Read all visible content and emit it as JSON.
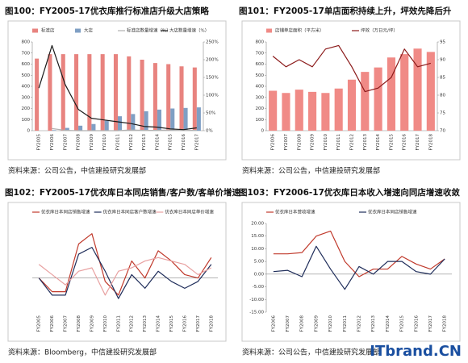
{
  "chart_data": [
    {
      "type": "combo",
      "title": "图100：FY2005-17优衣库推行标准店升级大店策略",
      "source": "资料来源：公司公告，中信建投研究发展部",
      "categories": [
        "FY2005",
        "FY2006",
        "FY2007",
        "FY2008",
        "FY2009",
        "FY2010",
        "FY2011",
        "FY2012",
        "FY2013",
        "FY2014",
        "FY2015",
        "FY2016",
        "FY2017"
      ],
      "ylim": [
        0,
        800
      ],
      "yticks": [
        0,
        100,
        200,
        300,
        400,
        500,
        600,
        700,
        800
      ],
      "y2lim": [
        0,
        250
      ],
      "y2ticks": [
        {
          "value": 0,
          "label": "0%"
        },
        {
          "value": 50,
          "label": "50%"
        },
        {
          "value": 100,
          "label": "100%"
        },
        {
          "value": 150,
          "label": "150%"
        },
        {
          "value": 200,
          "label": "200%"
        },
        {
          "value": 250,
          "label": "250%"
        }
      ],
      "series": [
        {
          "name": "标准店",
          "type": "bar",
          "color": "#e8837f",
          "values": [
            650,
            690,
            690,
            690,
            690,
            690,
            690,
            670,
            640,
            610,
            600,
            580,
            570
          ]
        },
        {
          "name": "大店",
          "type": "bar",
          "color": "#7f9fc4",
          "values": [
            0,
            5,
            25,
            45,
            60,
            90,
            130,
            150,
            175,
            190,
            200,
            205,
            210
          ]
        },
        {
          "name": "标准店数量增速（%）",
          "type": "line",
          "axis": "y2",
          "color": "#b0b0b0",
          "values": [
            null,
            6,
            1,
            0,
            0,
            0,
            0,
            2,
            1,
            1,
            2,
            1,
            1
          ]
        },
        {
          "name": "大店数量增速（%）",
          "type": "line",
          "axis": "y2",
          "color": "#1a1a1a",
          "values": [
            120,
            240,
            130,
            60,
            35,
            30,
            25,
            20,
            12,
            10,
            5,
            3,
            8
          ]
        }
      ]
    },
    {
      "type": "combo",
      "title": "图101：FY2005-17单店面积持续上升，坪效先降后升",
      "source": "资料来源：公司公告，中信建投研究发展部",
      "categories": [
        "FY2006",
        "FY2007",
        "FY2008",
        "FY2009",
        "FY2010",
        "FY2011",
        "FY2012",
        "FY2013",
        "FY2014",
        "FY2015",
        "FY2016",
        "FY2017",
        "FY2018"
      ],
      "ylim": [
        0,
        800
      ],
      "yticks": [
        0,
        100,
        200,
        300,
        400,
        500,
        600,
        700,
        800
      ],
      "y2lim": [
        70,
        95
      ],
      "y2ticks": [
        70,
        75,
        80,
        85,
        90,
        95
      ],
      "series": [
        {
          "name": "店铺单店面积（平方米）",
          "type": "bar",
          "color": "#f08a86",
          "values": [
            360,
            340,
            370,
            350,
            340,
            380,
            460,
            530,
            570,
            660,
            690,
            740,
            710
          ]
        },
        {
          "name": "坪效（万日元/坪）",
          "type": "line",
          "axis": "y2",
          "color": "#8b1a1a",
          "values": [
            91,
            88,
            90,
            88,
            93,
            94,
            88,
            81,
            82,
            85,
            93,
            88,
            89
          ]
        }
      ]
    },
    {
      "type": "line",
      "title": "图102：FY2005-17优衣库日本同店销售/客户数/客单价增速",
      "source": "资料来源：Bloomberg，中信建投研究发展部",
      "categories": [
        "FY2005",
        "FY2006",
        "FY2007",
        "FY2008",
        "FY2009",
        "FY2010",
        "FY2011",
        "FY2012",
        "FY2013",
        "FY2014",
        "FY2015",
        "FY2016",
        "FY2017",
        "FY2018"
      ],
      "ylim": [
        -10,
        16
      ],
      "series": [
        {
          "name": "优衣库日本同店销售增速",
          "type": "line",
          "color": "#c0392b",
          "values": [
            0,
            -4,
            -4,
            10,
            13,
            -1,
            -5,
            5,
            0,
            8,
            5,
            1,
            0,
            6
          ]
        },
        {
          "name": "优衣库日本同店客户数增速",
          "type": "line",
          "color": "#1f2d5a",
          "values": [
            0,
            -5,
            -5,
            7,
            9,
            2,
            -6,
            1,
            -3,
            2,
            -1,
            -3,
            -1,
            4
          ]
        },
        {
          "name": "优衣库日本同店单价增速",
          "type": "line",
          "color": "#e8a0a0",
          "values": [
            4,
            1,
            -2,
            2,
            3,
            -5,
            2,
            3,
            5,
            6,
            5,
            4,
            1,
            3
          ]
        }
      ]
    },
    {
      "type": "line",
      "title": "图103：FY2006-17优衣库日本收入增速向同店增速收敛",
      "source": "资料来源：公司公告，中信建投研究发展部",
      "categories": [
        "FY2006",
        "FY2007",
        "FY2008",
        "FY2009",
        "FY2010",
        "FY2011",
        "FY2012",
        "FY2013",
        "FY2014",
        "FY2015",
        "FY2016",
        "FY2017",
        "FY2018"
      ],
      "ylim": [
        -15,
        20
      ],
      "yticks": [
        {
          "value": -15,
          "label": "-15.00"
        },
        {
          "value": -10,
          "label": "-10.00"
        },
        {
          "value": -5,
          "label": "-5.00"
        },
        {
          "value": 0,
          "label": "0.00"
        },
        {
          "value": 5,
          "label": "5.00"
        },
        {
          "value": 10,
          "label": "10.00"
        },
        {
          "value": 15,
          "label": "15.00"
        },
        {
          "value": 20,
          "label": "20.00"
        }
      ],
      "series": [
        {
          "name": "优衣库日本营收增速",
          "type": "line",
          "color": "#c0392b",
          "values": [
            8,
            8,
            8.5,
            15,
            17,
            5,
            -1,
            2,
            2,
            7,
            4,
            2,
            6
          ]
        },
        {
          "name": "优衣库日本同店销售增速",
          "type": "line",
          "color": "#1f2d5a",
          "values": [
            1,
            1.5,
            -1,
            11,
            2,
            -6,
            3,
            0,
            5,
            5,
            1,
            0,
            6
          ]
        }
      ]
    }
  ],
  "watermark": "ITbrand.CN"
}
